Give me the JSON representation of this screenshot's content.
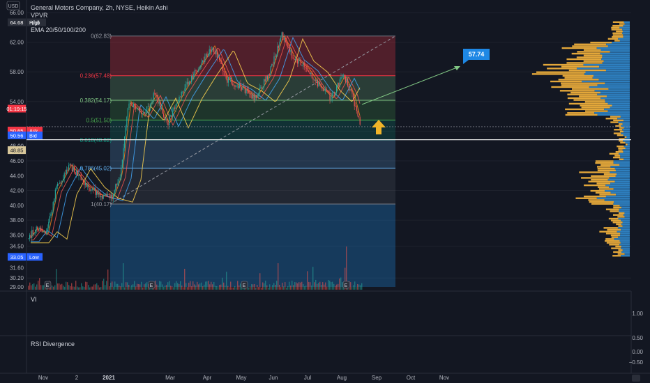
{
  "legend": {
    "symbol_line": "General Motors Company, 2h, NYSE, Heikin Ashi",
    "indicator_vpvr": "VPVR",
    "indicator_vol": "Vol",
    "indicator_ma": "EMA 20/50/100/200"
  },
  "left_axis": {
    "currency": "USD",
    "ticks": [
      "66.00",
      "62.00",
      "58.00",
      "54.00",
      "50.00",
      "48.00",
      "46.00",
      "44.00",
      "42.00",
      "40.00",
      "38.00",
      "36.00",
      "34.50",
      "31.60",
      "30.20",
      "29.00"
    ],
    "badges": [
      {
        "text": "64.68",
        "label": "High",
        "color": "#2a2e39"
      },
      {
        "text": "01:19:15",
        "label": "",
        "color": "#f23645"
      },
      {
        "text": "50.65",
        "label": "Ask",
        "color": "#f23645"
      },
      {
        "text": "50.56",
        "label": "Bid",
        "color": "#2962ff"
      },
      {
        "text": "48.85",
        "label": "",
        "color": "#d8c79a"
      },
      {
        "text": "33.05",
        "label": "Low",
        "color": "#2962ff"
      }
    ]
  },
  "fibonacci": [
    {
      "label": "0(62.83)",
      "value": 62.83,
      "color": "#787b86"
    },
    {
      "label": "0.236(57.48)",
      "value": 57.48,
      "color": "#f23645"
    },
    {
      "label": "0.382(54.17)",
      "value": 54.17,
      "color": "#81c784"
    },
    {
      "label": "0.5(51.50)",
      "value": 51.5,
      "color": "#4caf50"
    },
    {
      "label": "0.618(48.82)",
      "value": 48.82,
      "color": "#089981"
    },
    {
      "label": "0.786(45.02)",
      "value": 45.02,
      "color": "#64b5f6"
    },
    {
      "label": "1(40.17)",
      "value": 40.17,
      "color": "#787b86"
    }
  ],
  "target_label": "57.74",
  "panes": {
    "vi": "VI",
    "rsi": "RSI Divergence"
  },
  "right_axis": {
    "vi_ticks": [
      "1.00"
    ],
    "rsi_ticks": [
      "0.50",
      "0.00",
      "−0.50"
    ]
  },
  "x_axis_ticks": [
    "Nov",
    "2",
    "2021",
    "Mar",
    "Apr",
    "May",
    "Jun",
    "Jul",
    "Aug",
    "Sep",
    "Oct",
    "Nov"
  ],
  "earnings_marker": "E",
  "colors": {
    "background": "#131722",
    "up": "#26a69a",
    "down": "#ef5350",
    "volume_profile_up": "#2e7fbf",
    "volume_profile_down": "#e3a73a",
    "arrow": "#f0b429",
    "target_badge": "#1e88e5"
  },
  "chart_data": {
    "type": "line",
    "title": "General Motors Company, 2h, NYSE, Heikin Ashi",
    "x": [
      "Nov",
      "2",
      "2021",
      "Mar",
      "Apr",
      "May",
      "Jun",
      "Jul",
      "Aug"
    ],
    "series": [
      {
        "name": "",
        "values": [
          35.5,
          45.5,
          41.0,
          54.0,
          61.5,
          55.0,
          62.5,
          56.0,
          50.6
        ]
      }
    ],
    "fib_retracement": {
      "high": 62.83,
      "low": 40.17
    },
    "high": 64.68,
    "low": 33.05,
    "target": 57.74,
    "ylim": [
      29.0,
      66.0
    ]
  }
}
